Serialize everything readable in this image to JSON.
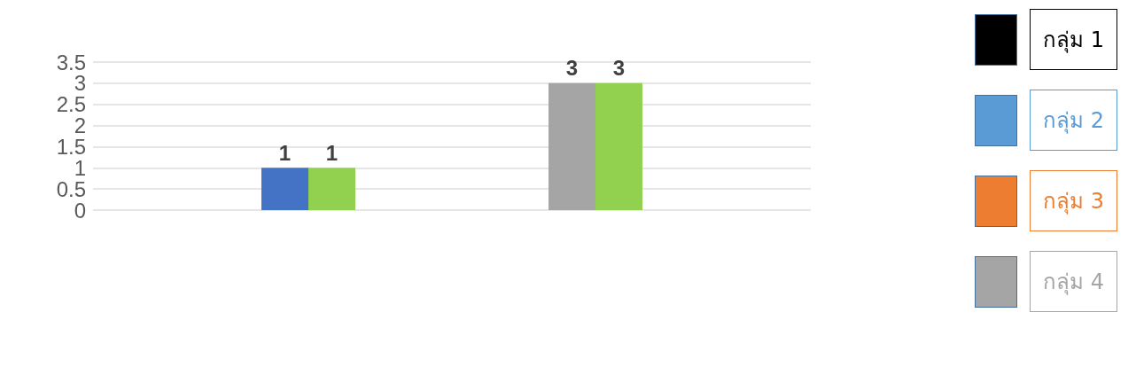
{
  "chart_data": [
    {
      "type": "bar",
      "categories": [
        null,
        null,
        null,
        null,
        null
      ],
      "series": [
        {
          "color": "#4472c4",
          "colors": [
            null,
            "#4472c4",
            null,
            "#a5a5a5",
            null
          ],
          "values": [
            null,
            1,
            null,
            3,
            null
          ]
        },
        {
          "color": "#92d050",
          "values": [
            null,
            1,
            null,
            3,
            null
          ]
        }
      ],
      "ylim": [
        0,
        3.5
      ],
      "yticks": [
        0,
        0.5,
        1,
        1.5,
        2,
        2.5,
        3,
        3.5
      ],
      "grid": "y",
      "data_labels": true
    },
    {
      "type": "other",
      "categories": [
        "กลุ่ม 1",
        "กลุ่ม 2",
        "กลุ่ม 3",
        "กลุ่ม 4"
      ],
      "colors": [
        "#000000",
        "#5b9bd5",
        "#ed7d31",
        "#a5a5a5"
      ]
    }
  ]
}
